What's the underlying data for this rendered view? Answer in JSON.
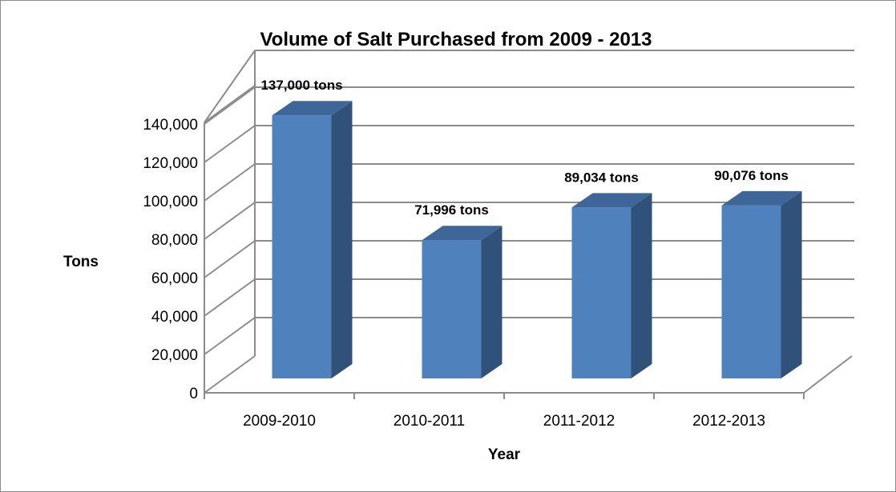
{
  "chart_data": {
    "type": "bar",
    "title": "Volume of Salt Purchased from 2009 - 2013",
    "xlabel": "Year",
    "ylabel": "Tons",
    "categories": [
      "2009-2010",
      "2010-2011",
      "2011-2012",
      "2012-2013"
    ],
    "values": [
      137000,
      71996,
      89034,
      90076
    ],
    "data_labels": [
      "137,000 tons",
      "71,996 tons",
      "89,034 tons",
      "90,076 tons"
    ],
    "yticks": [
      "0",
      "20,000",
      "40,000",
      "60,000",
      "80,000",
      "100,000",
      "120,000",
      "140,000"
    ],
    "ylim": [
      0,
      140000
    ],
    "grid": true,
    "legend": "none",
    "style": "3d-column",
    "colors": {
      "bar_front": "#4F81BD",
      "bar_side": "#30527A",
      "bar_top": "#3E6699",
      "grid": "#8C8C8C"
    }
  }
}
